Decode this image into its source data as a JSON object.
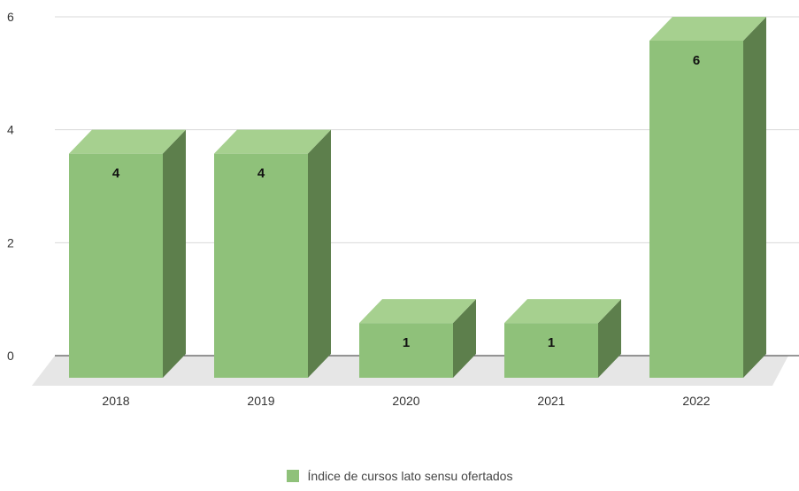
{
  "chart_data": {
    "type": "bar",
    "categories": [
      "2018",
      "2019",
      "2020",
      "2021",
      "2022"
    ],
    "series": [
      {
        "name": "Índice de cursos lato sensu ofertados",
        "values": [
          4,
          4,
          1,
          1,
          6
        ]
      }
    ],
    "data_labels": [
      "4",
      "4",
      "1",
      "1",
      "6"
    ],
    "y_ticks": [
      "0",
      "2",
      "4",
      "6"
    ],
    "ylim": [
      0,
      6
    ],
    "grid": true,
    "legend_position": "bottom",
    "style": "3d-column",
    "colors": {
      "bar_front": "#8fc17a",
      "bar_top": "#a6d08f",
      "bar_side": "#5d7f4c",
      "floor": "#e6e6e6",
      "gridline": "#d9d9d9",
      "baseline": "#595959"
    }
  }
}
